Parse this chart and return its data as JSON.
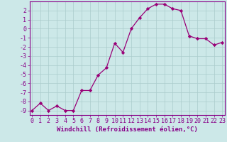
{
  "xlabel": "Windchill (Refroidissement éolien,°C)",
  "x": [
    0,
    1,
    2,
    3,
    4,
    5,
    6,
    7,
    8,
    9,
    10,
    11,
    12,
    13,
    14,
    15,
    16,
    17,
    18,
    19,
    20,
    21,
    22,
    23
  ],
  "y": [
    -9,
    -8.2,
    -9,
    -8.5,
    -9,
    -9,
    -6.8,
    -6.8,
    -5.1,
    -4.3,
    -1.6,
    -2.6,
    0,
    1.2,
    2.2,
    2.7,
    2.7,
    2.2,
    2.0,
    -0.8,
    -1.1,
    -1.1,
    -1.8,
    -1.5
  ],
  "line_color": "#990077",
  "marker": "D",
  "marker_size": 2.2,
  "bg_color": "#cce8e8",
  "grid_color": "#aacccc",
  "ylim": [
    -9.5,
    3.0
  ],
  "xlim": [
    -0.3,
    23.3
  ],
  "yticks": [
    2,
    1,
    0,
    -1,
    -2,
    -3,
    -4,
    -5,
    -6,
    -7,
    -8,
    -9
  ],
  "xticks": [
    0,
    1,
    2,
    3,
    4,
    5,
    6,
    7,
    8,
    9,
    10,
    11,
    12,
    13,
    14,
    15,
    16,
    17,
    18,
    19,
    20,
    21,
    22,
    23
  ],
  "tick_color": "#880088",
  "label_fontsize": 6.5,
  "tick_fontsize": 6.0,
  "spine_color": "#880088"
}
